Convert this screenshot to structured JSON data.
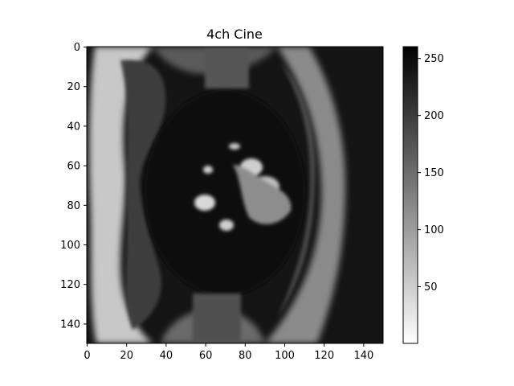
{
  "chart_data": {
    "type": "heatmap",
    "title": "4ch Cine",
    "xlabel": "",
    "ylabel": "",
    "xlim": [
      0,
      150
    ],
    "ylim": [
      150,
      0
    ],
    "x_ticks": [
      0,
      20,
      40,
      60,
      80,
      100,
      120,
      140
    ],
    "y_ticks": [
      0,
      20,
      40,
      60,
      80,
      100,
      120,
      140
    ],
    "colormap": "gray_r",
    "color_range": [
      0,
      260
    ],
    "colorbar_ticks": [
      50,
      100,
      150,
      200,
      250
    ],
    "grid": false,
    "colors": {
      "low": "#ffffff",
      "high": "#000000"
    }
  }
}
